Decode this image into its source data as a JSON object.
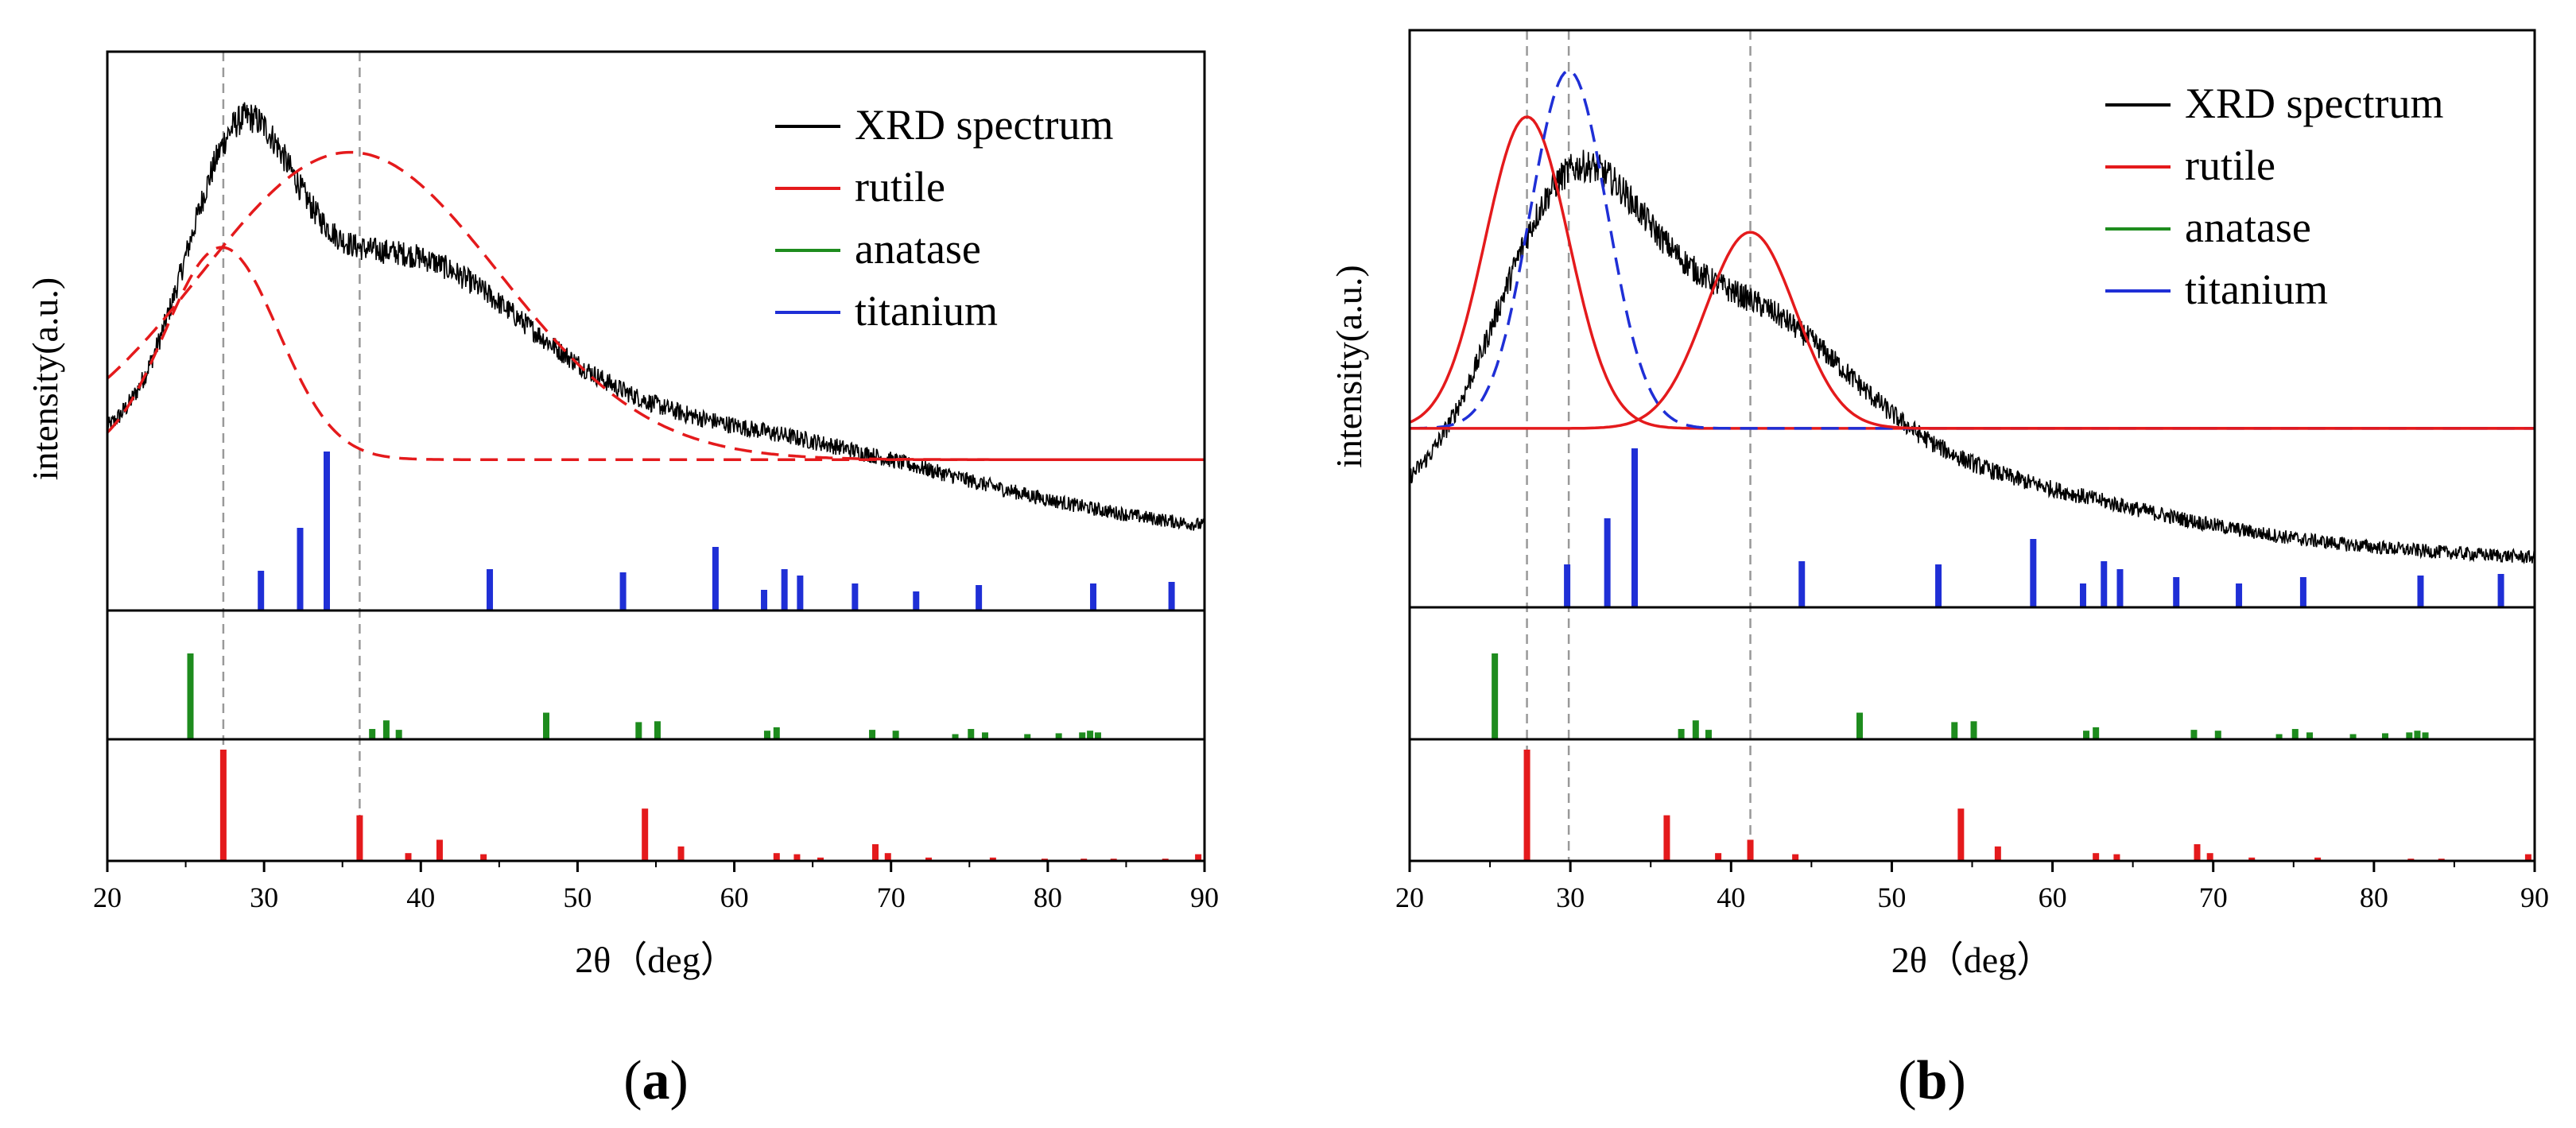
{
  "chart_data": [
    {
      "type": "line",
      "panel_label": "a",
      "xlabel": "2θ（deg）",
      "ylabel": "intensity(a.u.)",
      "xlim": [
        20,
        90
      ],
      "xticks": [
        20,
        30,
        40,
        50,
        60,
        70,
        80,
        90
      ],
      "reference_lines_x": [
        27.4,
        36.1
      ],
      "legend": {
        "position": "top-right",
        "entries": [
          {
            "label": "XRD spectrum",
            "color": "#000000"
          },
          {
            "label": "rutile",
            "color": "#e41a1c"
          },
          {
            "label": "anatase",
            "color": "#1e8c1e"
          },
          {
            "label": "titanium",
            "color": "#1f2fd6"
          }
        ]
      },
      "spectrum": {
        "name": "XRD spectrum",
        "color": "#000000",
        "ylim": [
          0,
          1
        ],
        "baseline": 0.27,
        "baseline_slope": 0.0018,
        "peaks": [
          {
            "center": 28.3,
            "height": 0.42,
            "width": 3.3
          },
          {
            "center": 38.0,
            "height": 0.37,
            "width": 8.5
          },
          {
            "center": 60.0,
            "height": 0.12,
            "width": 13
          }
        ],
        "noise": 0.022
      },
      "fit_curves": [
        {
          "name": "rutile fit 1",
          "color": "#e41a1c",
          "style": "dashed",
          "baseline": 0.27,
          "center": 27.3,
          "height": 0.38,
          "width": 3.6
        },
        {
          "name": "rutile fit 2",
          "color": "#e41a1c",
          "style": "dashed",
          "baseline": 0.27,
          "center": 35.5,
          "height": 0.55,
          "width": 9.5
        }
      ],
      "stick_series": [
        {
          "name": "titanium",
          "color": "#1f2fd6",
          "positions": [
            29.8,
            32.3,
            34.0,
            44.4,
            52.9,
            58.8,
            61.9,
            63.2,
            64.2,
            67.7,
            71.6,
            75.6,
            82.9,
            87.9
          ],
          "intensities": [
            0.25,
            0.52,
            1.0,
            0.26,
            0.24,
            0.4,
            0.13,
            0.26,
            0.22,
            0.17,
            0.12,
            0.16,
            0.17,
            0.18
          ]
        },
        {
          "name": "anatase",
          "color": "#1e8c1e",
          "positions": [
            25.3,
            36.9,
            37.8,
            38.6,
            48.0,
            53.9,
            55.1,
            62.1,
            62.7,
            68.8,
            70.3,
            74.1,
            75.1,
            76.0,
            78.7,
            80.7,
            82.2,
            82.7,
            83.2
          ],
          "intensities": [
            1.0,
            0.12,
            0.22,
            0.11,
            0.31,
            0.2,
            0.21,
            0.1,
            0.14,
            0.11,
            0.1,
            0.06,
            0.12,
            0.08,
            0.06,
            0.07,
            0.08,
            0.1,
            0.08
          ]
        },
        {
          "name": "rutile",
          "color": "#e41a1c",
          "positions": [
            27.4,
            36.1,
            39.2,
            41.2,
            44.0,
            54.3,
            56.6,
            62.7,
            64.0,
            65.5,
            69.0,
            69.8,
            72.4,
            76.5,
            79.8,
            82.3,
            84.2,
            87.5,
            89.6
          ],
          "intensities": [
            1.0,
            0.41,
            0.07,
            0.19,
            0.06,
            0.47,
            0.13,
            0.07,
            0.06,
            0.03,
            0.15,
            0.07,
            0.03,
            0.03,
            0.02,
            0.02,
            0.02,
            0.02,
            0.06
          ]
        }
      ]
    },
    {
      "type": "line",
      "panel_label": "b",
      "xlabel": "2θ（deg）",
      "ylabel": "intensity(a.u.)",
      "xlim": [
        20,
        90
      ],
      "xticks": [
        20,
        30,
        40,
        50,
        60,
        70,
        80,
        90
      ],
      "reference_lines_x": [
        27.3,
        29.9,
        41.2
      ],
      "legend": {
        "position": "top-right",
        "entries": [
          {
            "label": "XRD spectrum",
            "color": "#000000"
          },
          {
            "label": "rutile",
            "color": "#e41a1c"
          },
          {
            "label": "anatase",
            "color": "#1e8c1e"
          },
          {
            "label": "titanium",
            "color": "#1f2fd6"
          }
        ]
      },
      "spectrum": {
        "name": "XRD spectrum",
        "color": "#000000",
        "ylim": [
          0,
          1
        ],
        "baseline": 0.17,
        "baseline_slope": 0.0012,
        "peaks": [
          {
            "center": 29.8,
            "height": 0.5,
            "width": 4.6
          },
          {
            "center": 40.5,
            "height": 0.3,
            "width": 6.5
          },
          {
            "center": 52.0,
            "height": 0.1,
            "width": 12
          }
        ],
        "noise": 0.024
      },
      "fit_curves": [
        {
          "name": "rutile fit 1",
          "color": "#e41a1c",
          "style": "solid",
          "baseline": 0.31,
          "center": 27.3,
          "height": 0.54,
          "width": 2.6
        },
        {
          "name": "titanium fit",
          "color": "#1f2fd6",
          "style": "dashed",
          "baseline": 0.31,
          "center": 29.9,
          "height": 0.62,
          "width": 2.4
        },
        {
          "name": "rutile fit 2",
          "color": "#e41a1c",
          "style": "solid",
          "baseline": 0.31,
          "center": 41.2,
          "height": 0.34,
          "width": 2.8
        }
      ],
      "stick_series": [
        {
          "name": "titanium",
          "color": "#1f2fd6",
          "positions": [
            29.8,
            32.3,
            34.0,
            44.4,
            52.9,
            58.8,
            61.9,
            63.2,
            64.2,
            67.7,
            71.6,
            75.6,
            82.9,
            87.9
          ],
          "intensities": [
            0.27,
            0.56,
            1.0,
            0.29,
            0.27,
            0.43,
            0.15,
            0.29,
            0.24,
            0.19,
            0.15,
            0.19,
            0.2,
            0.21
          ]
        },
        {
          "name": "anatase",
          "color": "#1e8c1e",
          "positions": [
            25.3,
            36.9,
            37.8,
            38.6,
            48.0,
            53.9,
            55.1,
            62.1,
            62.7,
            68.8,
            70.3,
            74.1,
            75.1,
            76.0,
            78.7,
            80.7,
            82.2,
            82.7,
            83.2
          ],
          "intensities": [
            1.0,
            0.12,
            0.22,
            0.11,
            0.31,
            0.2,
            0.21,
            0.1,
            0.14,
            0.11,
            0.1,
            0.06,
            0.12,
            0.08,
            0.06,
            0.07,
            0.08,
            0.1,
            0.08
          ]
        },
        {
          "name": "rutile",
          "color": "#e41a1c",
          "positions": [
            27.3,
            36.0,
            39.2,
            41.2,
            44.0,
            54.3,
            56.6,
            62.7,
            64.0,
            69.0,
            69.8,
            72.4,
            76.5,
            82.3,
            84.2,
            89.6
          ],
          "intensities": [
            1.0,
            0.41,
            0.07,
            0.19,
            0.06,
            0.47,
            0.13,
            0.07,
            0.06,
            0.15,
            0.07,
            0.03,
            0.03,
            0.02,
            0.02,
            0.06
          ]
        }
      ]
    }
  ]
}
